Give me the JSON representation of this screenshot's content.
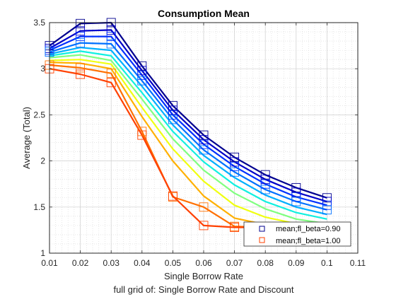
{
  "chart_data": {
    "type": "line",
    "title": "Consumption Mean",
    "xlabel": "Single Borrow Rate",
    "ylabel": "Average (Total)",
    "subtitle": "full grid of: Single Borrow Rate and Discount",
    "xlim": [
      0.01,
      0.11
    ],
    "ylim": [
      1,
      3.5
    ],
    "xticks": [
      "0.01",
      "0.02",
      "0.03",
      "0.04",
      "0.05",
      "0.06",
      "0.07",
      "0.08",
      "0.09",
      "0.1",
      "0.11"
    ],
    "yticks": [
      "1",
      "1.5",
      "2",
      "2.5",
      "3",
      "3.5"
    ],
    "xtick_values": [
      0.01,
      0.02,
      0.03,
      0.04,
      0.05,
      0.06,
      0.07,
      0.08,
      0.09,
      0.1,
      0.11
    ],
    "ytick_values": [
      1,
      1.5,
      2,
      2.5,
      3,
      3.5
    ],
    "grid": true,
    "legend_position": "bottom-right",
    "x": [
      0.01,
      0.02,
      0.03,
      0.04,
      0.05,
      0.06,
      0.07,
      0.08,
      0.09,
      0.1
    ],
    "marked_series": [
      0,
      1,
      2,
      3,
      9,
      10
    ],
    "series": [
      {
        "name": "mean;fl_beta=0.90",
        "color": "#00008f",
        "values": [
          3.25,
          3.49,
          3.5,
          3.03,
          2.6,
          2.28,
          2.04,
          1.85,
          1.71,
          1.6
        ]
      },
      {
        "name": "",
        "color": "#0000c8",
        "values": [
          3.22,
          3.41,
          3.42,
          2.98,
          2.55,
          2.23,
          1.99,
          1.8,
          1.66,
          1.56
        ]
      },
      {
        "name": "",
        "color": "#0030ff",
        "values": [
          3.2,
          3.35,
          3.35,
          2.93,
          2.5,
          2.18,
          1.94,
          1.75,
          1.61,
          1.52
        ]
      },
      {
        "name": "",
        "color": "#0070ff",
        "values": [
          3.18,
          3.28,
          3.27,
          2.87,
          2.45,
          2.12,
          1.88,
          1.69,
          1.56,
          1.47
        ]
      },
      {
        "name": "",
        "color": "#00b0ff",
        "values": [
          3.16,
          3.23,
          3.2,
          2.81,
          2.39,
          2.06,
          1.82,
          1.63,
          1.5,
          1.42
        ]
      },
      {
        "name": "",
        "color": "#10f0e0",
        "values": [
          3.14,
          3.19,
          3.14,
          2.74,
          2.32,
          1.99,
          1.74,
          1.56,
          1.44,
          1.37
        ]
      },
      {
        "name": "",
        "color": "#80ff80",
        "values": [
          3.12,
          3.15,
          3.09,
          2.67,
          2.24,
          1.9,
          1.65,
          1.48,
          1.37,
          1.32
        ]
      },
      {
        "name": "",
        "color": "#f0ff10",
        "values": [
          3.09,
          3.1,
          3.05,
          2.58,
          2.13,
          1.78,
          1.52,
          1.39,
          1.32,
          1.29
        ]
      },
      {
        "name": "",
        "color": "#ffb000",
        "values": [
          3.07,
          3.06,
          3.0,
          2.48,
          2.0,
          1.62,
          1.38,
          1.31,
          1.29,
          1.28
        ]
      },
      {
        "name": "",
        "color": "#ff7000",
        "values": [
          3.04,
          3.01,
          2.95,
          2.32,
          1.61,
          1.5,
          1.29,
          1.28,
          1.28,
          1.28
        ]
      },
      {
        "name": "mean;fl_beta=1.00",
        "color": "#ff4000",
        "values": [
          3.0,
          2.94,
          2.85,
          2.28,
          1.62,
          1.3,
          1.28,
          1.28,
          1.27,
          1.27
        ]
      }
    ]
  }
}
